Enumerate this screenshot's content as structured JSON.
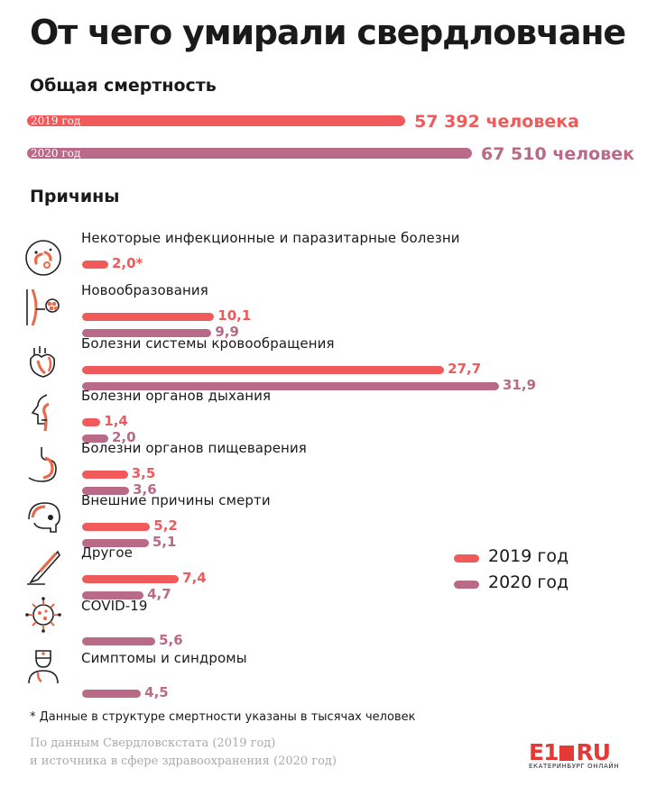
{
  "title": "От чего умирали свердловчане",
  "total_section": {
    "heading": "Общая смертность",
    "rows": [
      {
        "year_label": "2019 год",
        "value_text": "57 392 человека",
        "value": 57392
      },
      {
        "year_label": "2020 год",
        "value_text": "67 510 человек",
        "value": 67510
      }
    ]
  },
  "causes_heading": "Причины",
  "colors": {
    "y2019": "#f05a5b",
    "y2020": "#b86a86",
    "icon": "#e96a4a"
  },
  "chart_data": {
    "type": "bar",
    "series": [
      {
        "name": "2019 год",
        "key": "y2019"
      },
      {
        "name": "2020 год",
        "key": "y2020"
      }
    ],
    "categories": [
      {
        "label": "Некоторые инфекционные и паразитарные болезни",
        "icon": "bacteria-icon",
        "y2019": 2.0,
        "y2019_text": "2,0*",
        "y2020": null,
        "y2020_text": null
      },
      {
        "label": "Новообразования",
        "icon": "tumor-icon",
        "y2019": 10.1,
        "y2019_text": "10,1",
        "y2020": 9.9,
        "y2020_text": "9,9"
      },
      {
        "label": "Болезни системы кровообращения",
        "icon": "heart-icon",
        "y2019": 27.7,
        "y2019_text": "27,7",
        "y2020": 31.9,
        "y2020_text": "31,9"
      },
      {
        "label": "Болезни органов дыхания",
        "icon": "respiratory-icon",
        "y2019": 1.4,
        "y2019_text": "1,4",
        "y2020": 2.0,
        "y2020_text": "2,0"
      },
      {
        "label": "Болезни органов пищеварения",
        "icon": "stomach-icon",
        "y2019": 3.5,
        "y2019_text": "3,5",
        "y2020": 3.6,
        "y2020_text": "3,6"
      },
      {
        "label": "Внешние причины смерти",
        "icon": "skull-icon",
        "y2019": 5.2,
        "y2019_text": "5,2",
        "y2020": 5.1,
        "y2020_text": "5,1"
      },
      {
        "label": "Другое",
        "icon": "scalpel-icon",
        "y2019": 7.4,
        "y2019_text": "7,4",
        "y2020": 4.7,
        "y2020_text": "4,7"
      },
      {
        "label": "COVID-19",
        "icon": "virus-icon",
        "y2019": null,
        "y2019_text": null,
        "y2020": 5.6,
        "y2020_text": "5,6"
      },
      {
        "label": "Симптомы и синдромы",
        "icon": "doctor-icon",
        "y2019": null,
        "y2019_text": null,
        "y2020": 4.5,
        "y2020_text": "4,5"
      }
    ],
    "legend": [
      "2019 год",
      "2020 год"
    ],
    "legend_position": "right"
  },
  "footnote": "* Данные в структуре смертности указаны в тысячах человек",
  "source_lines": [
    "По данным Свердловскстата (2019 год)",
    "и источника в сфере здравоохранения (2020 год)"
  ],
  "logo": {
    "main": "E1",
    "ru": "RU",
    "sub": "ЕКАТЕРИНБУРГ ОНЛАЙН"
  }
}
